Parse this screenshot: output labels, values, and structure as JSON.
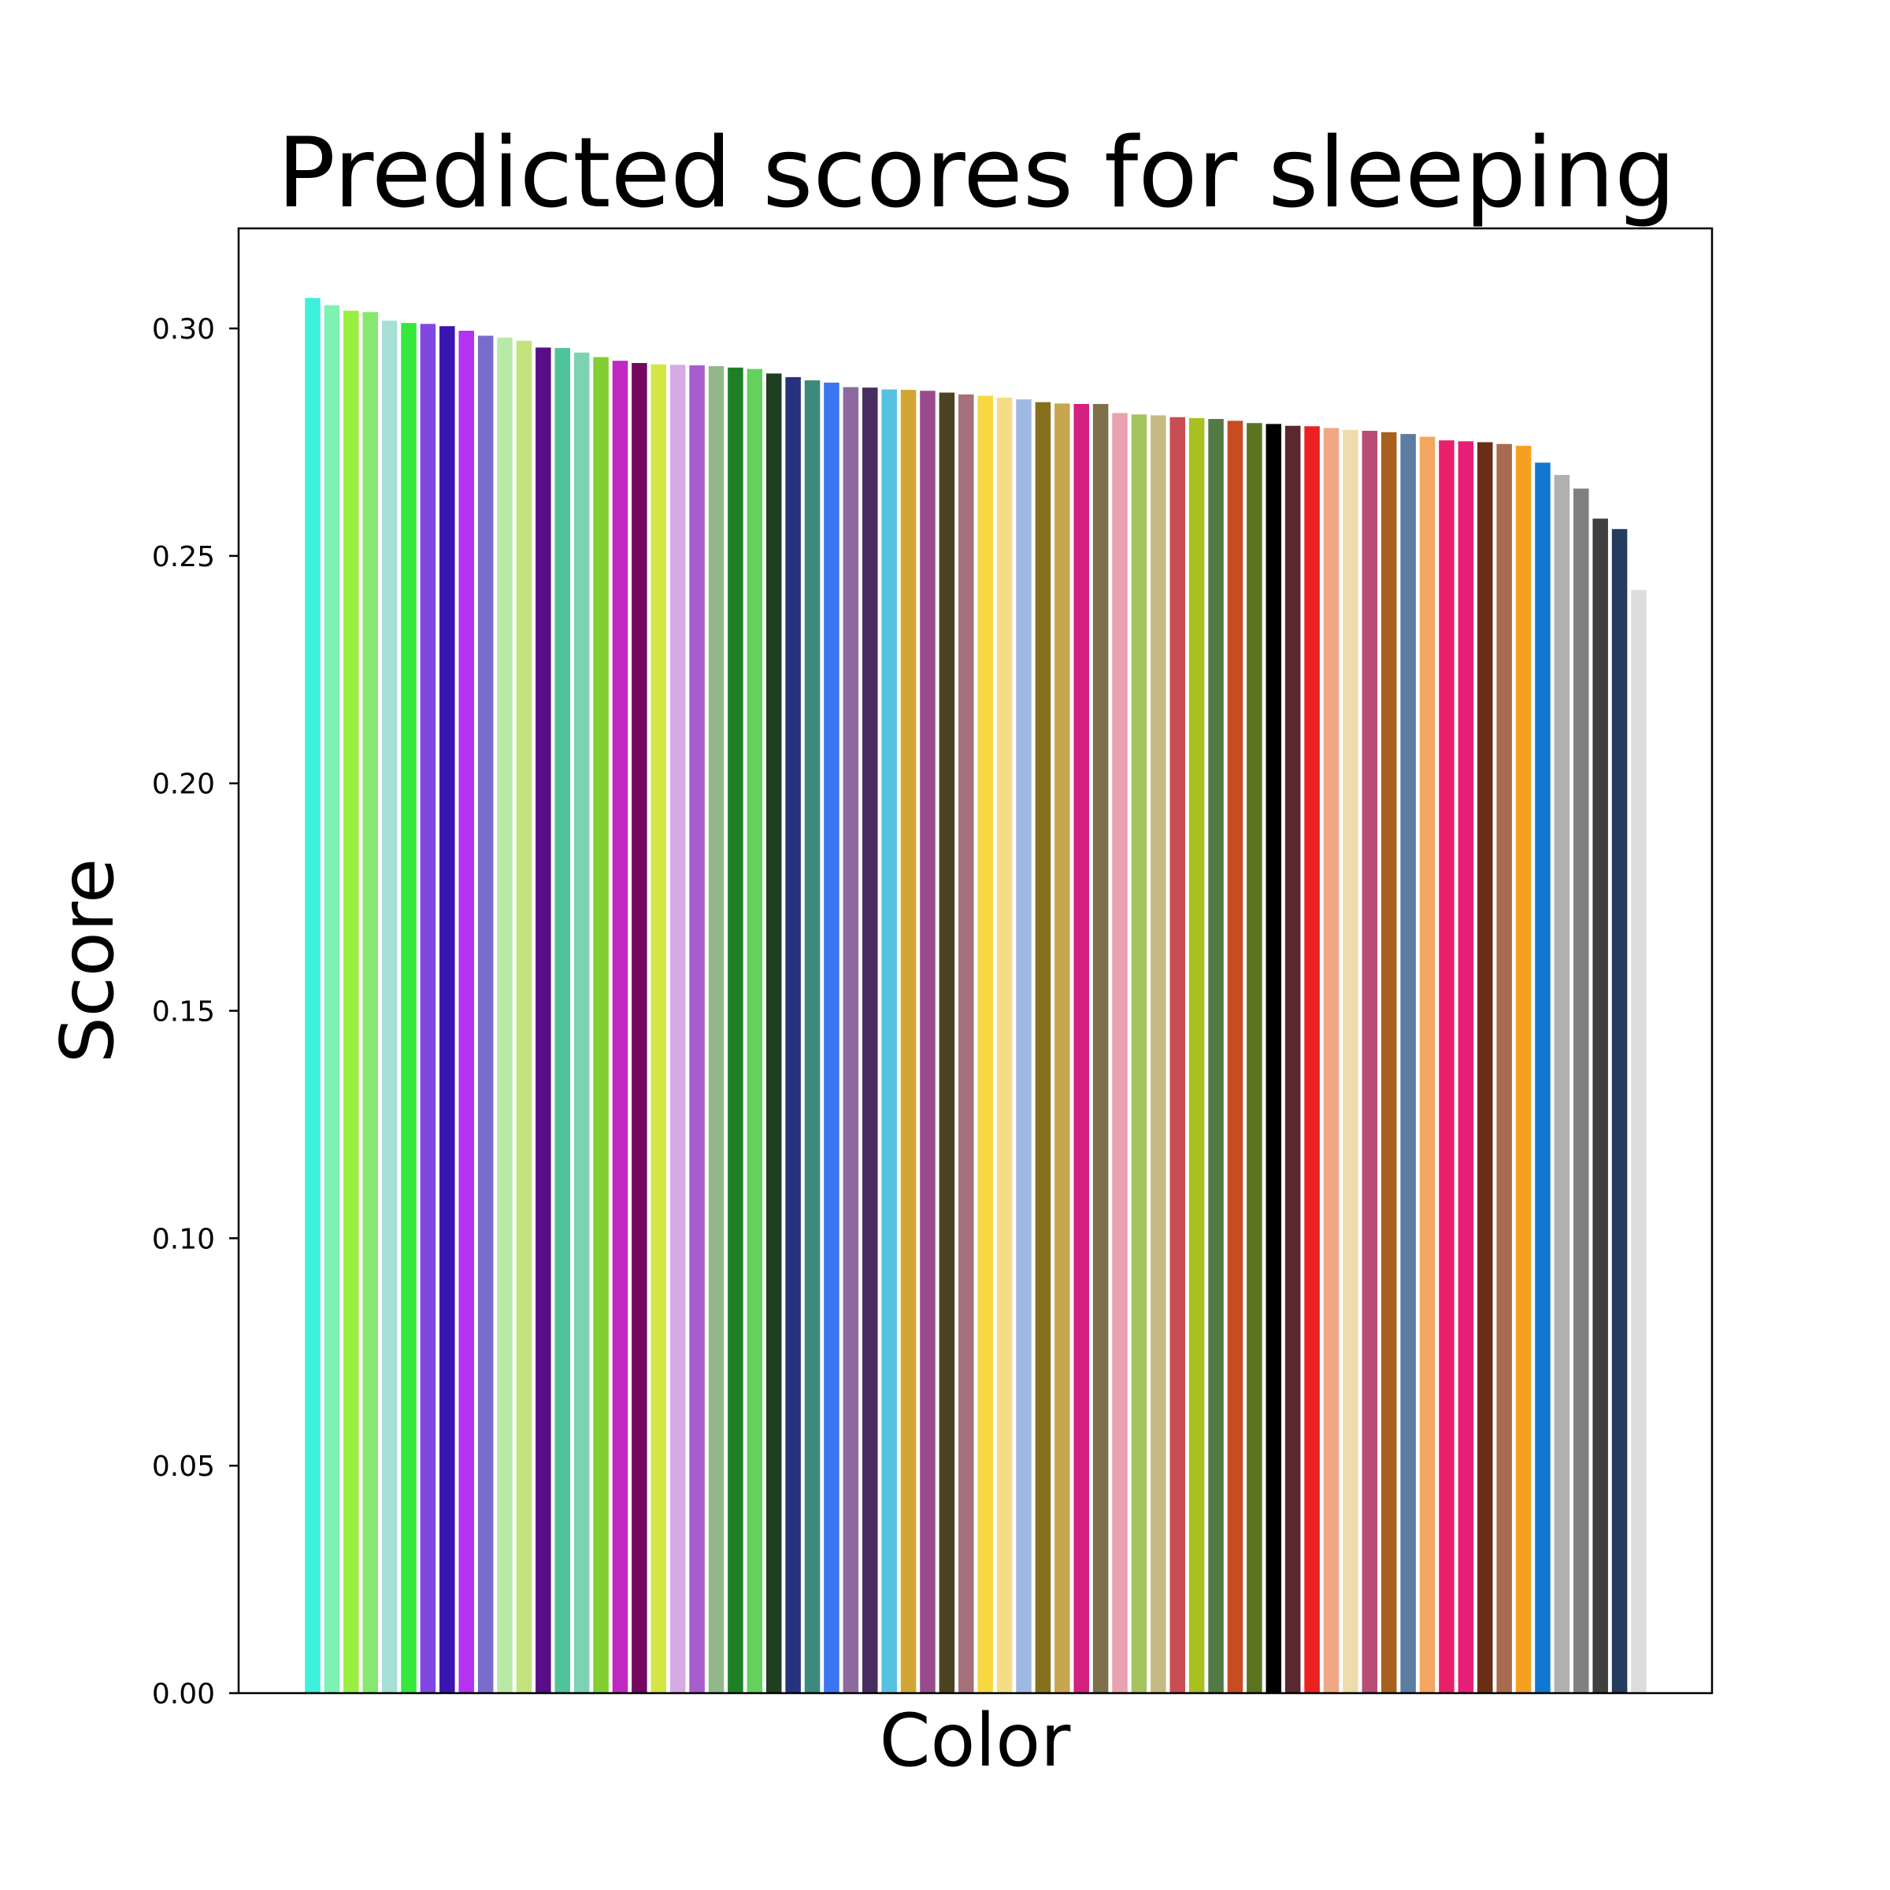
{
  "chart_data": {
    "type": "bar",
    "title": "Predicted scores for sleeping",
    "xlabel": "Color",
    "ylabel": "Score",
    "ylim": [
      0,
      0.322
    ],
    "yticks": [
      "0.00",
      "0.05",
      "0.10",
      "0.15",
      "0.20",
      "0.25",
      "0.30"
    ],
    "grid": false,
    "legend": "none",
    "bars": [
      {
        "value": 0.3067,
        "color": "#3ef0dc"
      },
      {
        "value": 0.3051,
        "color": "#7ef2b2"
      },
      {
        "value": 0.3039,
        "color": "#99f040"
      },
      {
        "value": 0.3036,
        "color": "#87e870"
      },
      {
        "value": 0.3017,
        "color": "#a6e0d6"
      },
      {
        "value": 0.3012,
        "color": "#35e83c"
      },
      {
        "value": 0.301,
        "color": "#8048e0"
      },
      {
        "value": 0.3005,
        "color": "#3a16b0"
      },
      {
        "value": 0.2995,
        "color": "#b632f2"
      },
      {
        "value": 0.2984,
        "color": "#7a6ccc"
      },
      {
        "value": 0.298,
        "color": "#b8eaa6"
      },
      {
        "value": 0.2973,
        "color": "#c4e27e"
      },
      {
        "value": 0.2958,
        "color": "#580e86"
      },
      {
        "value": 0.2957,
        "color": "#4fc49a"
      },
      {
        "value": 0.2947,
        "color": "#7ed2b4"
      },
      {
        "value": 0.2937,
        "color": "#83ce32"
      },
      {
        "value": 0.2929,
        "color": "#c028c2"
      },
      {
        "value": 0.2924,
        "color": "#73085e"
      },
      {
        "value": 0.2921,
        "color": "#d4e646"
      },
      {
        "value": 0.292,
        "color": "#d6aae2"
      },
      {
        "value": 0.2919,
        "color": "#a65ece"
      },
      {
        "value": 0.2917,
        "color": "#92b88a"
      },
      {
        "value": 0.2914,
        "color": "#1e8026"
      },
      {
        "value": 0.2911,
        "color": "#64d05e"
      },
      {
        "value": 0.2901,
        "color": "#1f4020"
      },
      {
        "value": 0.2893,
        "color": "#27337e"
      },
      {
        "value": 0.2886,
        "color": "#3e8a7c"
      },
      {
        "value": 0.2881,
        "color": "#3b75f2"
      },
      {
        "value": 0.2871,
        "color": "#8c6aa0"
      },
      {
        "value": 0.287,
        "color": "#482e60"
      },
      {
        "value": 0.2866,
        "color": "#54c2e0"
      },
      {
        "value": 0.2865,
        "color": "#d2a632"
      },
      {
        "value": 0.2863,
        "color": "#9a4a8e"
      },
      {
        "value": 0.2859,
        "color": "#4a4220"
      },
      {
        "value": 0.2855,
        "color": "#a6707a"
      },
      {
        "value": 0.2852,
        "color": "#f8d840"
      },
      {
        "value": 0.2848,
        "color": "#f6dc84"
      },
      {
        "value": 0.2844,
        "color": "#a0b8e4"
      },
      {
        "value": 0.2838,
        "color": "#86701c"
      },
      {
        "value": 0.2835,
        "color": "#c8a650"
      },
      {
        "value": 0.2834,
        "color": "#d42080"
      },
      {
        "value": 0.2834,
        "color": "#7e704a"
      },
      {
        "value": 0.2814,
        "color": "#e8a2b0"
      },
      {
        "value": 0.2811,
        "color": "#a4c45e"
      },
      {
        "value": 0.2809,
        "color": "#c6ba84"
      },
      {
        "value": 0.2805,
        "color": "#c84e52"
      },
      {
        "value": 0.2803,
        "color": "#a8c020"
      },
      {
        "value": 0.2801,
        "color": "#537a44"
      },
      {
        "value": 0.2797,
        "color": "#c84c22"
      },
      {
        "value": 0.2792,
        "color": "#5a7420"
      },
      {
        "value": 0.279,
        "color": "#000000"
      },
      {
        "value": 0.2786,
        "color": "#5a2830"
      },
      {
        "value": 0.2785,
        "color": "#ee2020"
      },
      {
        "value": 0.2781,
        "color": "#f0a884"
      },
      {
        "value": 0.2777,
        "color": "#eedcac"
      },
      {
        "value": 0.2775,
        "color": "#b84c74"
      },
      {
        "value": 0.2772,
        "color": "#a8601e"
      },
      {
        "value": 0.2768,
        "color": "#5c7ca2"
      },
      {
        "value": 0.2762,
        "color": "#f4a660"
      },
      {
        "value": 0.2754,
        "color": "#e8206a"
      },
      {
        "value": 0.2752,
        "color": "#e81e78"
      },
      {
        "value": 0.275,
        "color": "#6a2e16"
      },
      {
        "value": 0.2746,
        "color": "#a86a50"
      },
      {
        "value": 0.2742,
        "color": "#f6a022"
      },
      {
        "value": 0.2705,
        "color": "#1078d0"
      },
      {
        "value": 0.2678,
        "color": "#b0b0b0"
      },
      {
        "value": 0.2648,
        "color": "#808080"
      },
      {
        "value": 0.2582,
        "color": "#404040"
      },
      {
        "value": 0.2559,
        "color": "#243c5e"
      },
      {
        "value": 0.2425,
        "color": "#dcdcdc"
      }
    ]
  }
}
